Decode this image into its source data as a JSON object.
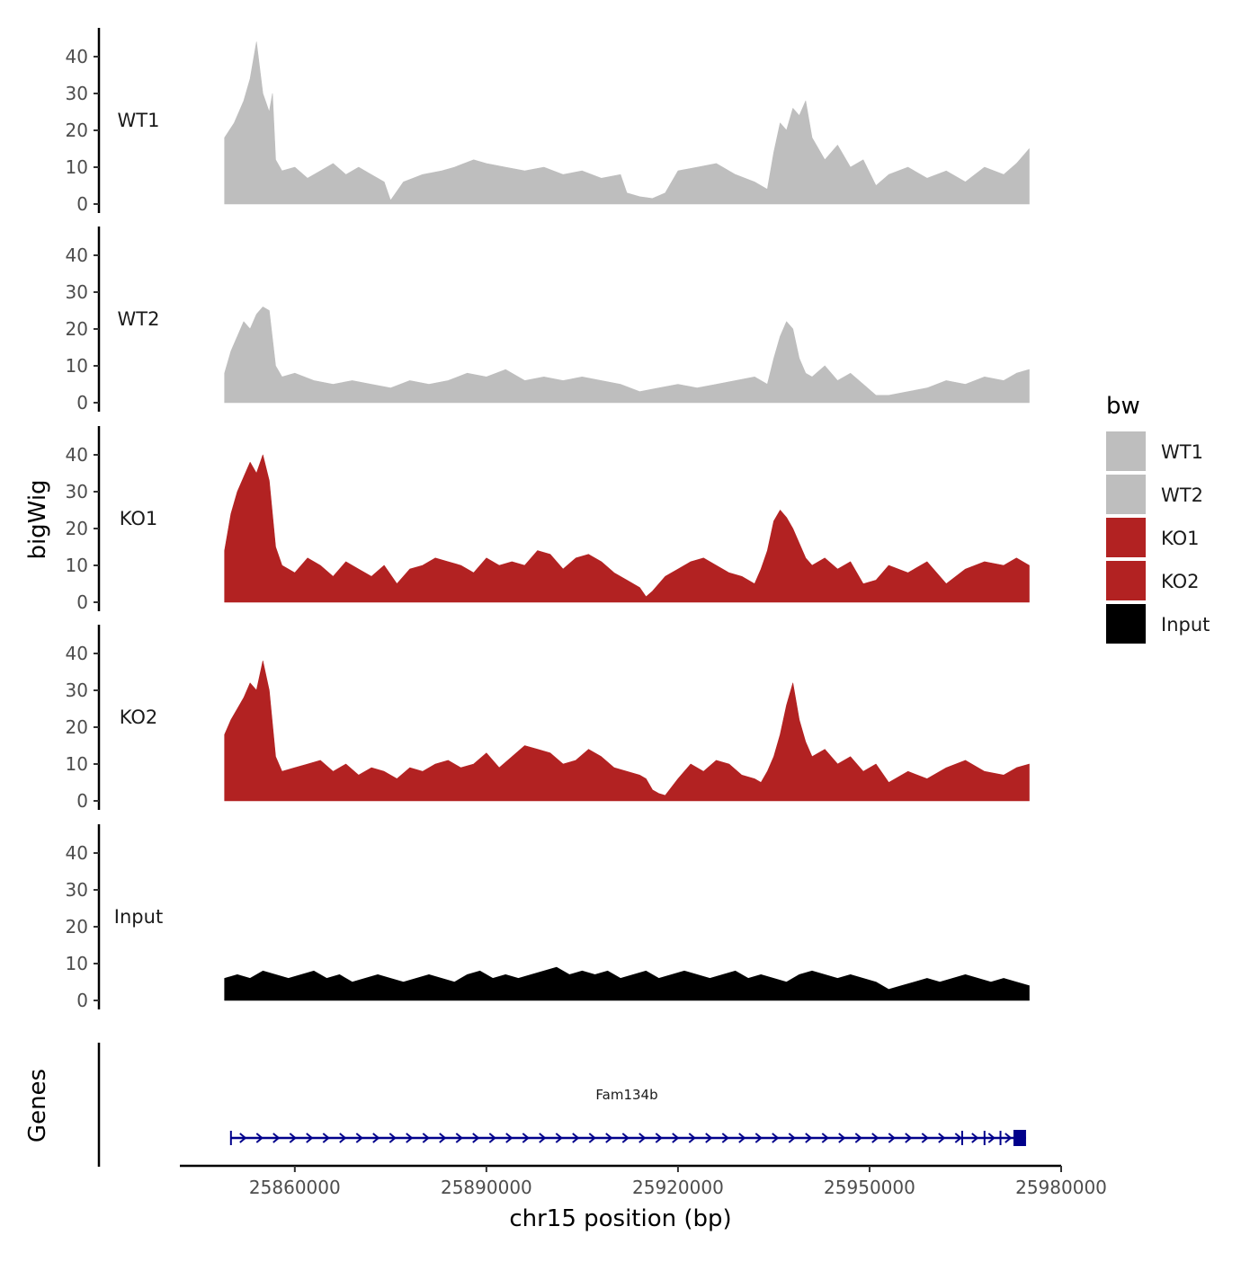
{
  "chart_data": {
    "type": "area",
    "subtype": "genome-browser-tracks",
    "chromosome": "chr15",
    "xlabel": "chr15 position (bp)",
    "ylabel": "bigWig",
    "genes_label": "Genes",
    "xlim": [
      25842000,
      25980000
    ],
    "data_range": [
      25849000,
      25975000
    ],
    "x_ticks": [
      25860000,
      25890000,
      25920000,
      25950000,
      25980000
    ],
    "x_tick_labels": [
      "25860000",
      "25890000",
      "25920000",
      "25950000",
      "25980000"
    ],
    "ylim": [
      0,
      48
    ],
    "y_ticks": [
      0,
      10,
      20,
      30,
      40
    ],
    "y_tick_labels": [
      "0",
      "10",
      "20",
      "30",
      "40"
    ],
    "legend": {
      "title": "bw",
      "position": "right",
      "entries": [
        {
          "label": "WT1",
          "color": "#BEBEBE"
        },
        {
          "label": "WT2",
          "color": "#BEBEBE"
        },
        {
          "label": "KO1",
          "color": "#B22222"
        },
        {
          "label": "KO2",
          "color": "#B22222"
        },
        {
          "label": "Input",
          "color": "#000000"
        }
      ]
    },
    "series": [
      {
        "name": "WT1",
        "label": "WT1",
        "color": "#BEBEBE",
        "x": [
          25849000,
          25850500,
          25852000,
          25853000,
          25854000,
          25855000,
          25856000,
          25856500,
          25857000,
          25858000,
          25860000,
          25862000,
          25864000,
          25866000,
          25868000,
          25870000,
          25872000,
          25874000,
          25875000,
          25877000,
          25880000,
          25883000,
          25885000,
          25888000,
          25890000,
          25893000,
          25896000,
          25899000,
          25902000,
          25905000,
          25908000,
          25911000,
          25912000,
          25914000,
          25916000,
          25918000,
          25920000,
          25923000,
          25926000,
          25929000,
          25932000,
          25933000,
          25934000,
          25935000,
          25936000,
          25937000,
          25938000,
          25939000,
          25940000,
          25941000,
          25943000,
          25945000,
          25947000,
          25949000,
          25951000,
          25953000,
          25956000,
          25959000,
          25962000,
          25965000,
          25968000,
          25971000,
          25973000,
          25975000
        ],
        "values": [
          18,
          22,
          28,
          34,
          44,
          30,
          25,
          30,
          12,
          9,
          10,
          7,
          9,
          11,
          8,
          10,
          8,
          6,
          1,
          6,
          8,
          9,
          10,
          12,
          11,
          10,
          9,
          10,
          8,
          9,
          7,
          8,
          3,
          2,
          1.5,
          3,
          9,
          10,
          11,
          8,
          6,
          5,
          4,
          14,
          22,
          20,
          26,
          24,
          28,
          18,
          12,
          16,
          10,
          12,
          5,
          8,
          10,
          7,
          9,
          6,
          10,
          8,
          11,
          15
        ]
      },
      {
        "name": "WT2",
        "label": "WT2",
        "color": "#BEBEBE",
        "x": [
          25849000,
          25850000,
          25851000,
          25852000,
          25853000,
          25854000,
          25855000,
          25856000,
          25857000,
          25858000,
          25860000,
          25863000,
          25866000,
          25869000,
          25872000,
          25875000,
          25878000,
          25881000,
          25884000,
          25887000,
          25890000,
          25893000,
          25896000,
          25899000,
          25902000,
          25905000,
          25908000,
          25911000,
          25914000,
          25917000,
          25920000,
          25923000,
          25926000,
          25929000,
          25932000,
          25934000,
          25935000,
          25936000,
          25937000,
          25938000,
          25939000,
          25940000,
          25941000,
          25943000,
          25945000,
          25947000,
          25949000,
          25951000,
          25953000,
          25956000,
          25959000,
          25962000,
          25965000,
          25968000,
          25971000,
          25973000,
          25975000
        ],
        "values": [
          8,
          14,
          18,
          22,
          20,
          24,
          26,
          25,
          10,
          7,
          8,
          6,
          5,
          6,
          5,
          4,
          6,
          5,
          6,
          8,
          7,
          9,
          6,
          7,
          6,
          7,
          6,
          5,
          3,
          4,
          5,
          4,
          5,
          6,
          7,
          5,
          12,
          18,
          22,
          20,
          12,
          8,
          7,
          10,
          6,
          8,
          5,
          2,
          2,
          3,
          4,
          6,
          5,
          7,
          6,
          8,
          9
        ]
      },
      {
        "name": "KO1",
        "label": "KO1",
        "color": "#B22222",
        "x": [
          25849000,
          25850000,
          25851000,
          25852000,
          25853000,
          25854000,
          25855000,
          25856000,
          25857000,
          25858000,
          25860000,
          25862000,
          25864000,
          25866000,
          25868000,
          25870000,
          25872000,
          25874000,
          25876000,
          25878000,
          25880000,
          25882000,
          25884000,
          25886000,
          25888000,
          25890000,
          25892000,
          25894000,
          25896000,
          25898000,
          25900000,
          25902000,
          25904000,
          25906000,
          25908000,
          25910000,
          25912000,
          25914000,
          25915000,
          25916000,
          25918000,
          25920000,
          25922000,
          25924000,
          25926000,
          25928000,
          25930000,
          25932000,
          25933000,
          25934000,
          25935000,
          25936000,
          25937000,
          25938000,
          25939000,
          25940000,
          25941000,
          25943000,
          25945000,
          25947000,
          25949000,
          25951000,
          25953000,
          25956000,
          25959000,
          25962000,
          25965000,
          25968000,
          25971000,
          25973000,
          25975000
        ],
        "values": [
          14,
          24,
          30,
          34,
          38,
          35,
          40,
          33,
          15,
          10,
          8,
          12,
          10,
          7,
          11,
          9,
          7,
          10,
          5,
          9,
          10,
          12,
          11,
          10,
          8,
          12,
          10,
          11,
          10,
          14,
          13,
          9,
          12,
          13,
          11,
          8,
          6,
          4,
          1.5,
          3,
          7,
          9,
          11,
          12,
          10,
          8,
          7,
          5,
          9,
          14,
          22,
          25,
          23,
          20,
          16,
          12,
          10,
          12,
          9,
          11,
          5,
          6,
          10,
          8,
          11,
          5,
          9,
          11,
          10,
          12,
          10
        ]
      },
      {
        "name": "KO2",
        "label": "KO2",
        "color": "#B22222",
        "x": [
          25849000,
          25850000,
          25851000,
          25852000,
          25853000,
          25854000,
          25855000,
          25856000,
          25857000,
          25858000,
          25860000,
          25862000,
          25864000,
          25866000,
          25868000,
          25870000,
          25872000,
          25874000,
          25876000,
          25878000,
          25880000,
          25882000,
          25884000,
          25886000,
          25888000,
          25890000,
          25892000,
          25894000,
          25896000,
          25898000,
          25900000,
          25902000,
          25904000,
          25906000,
          25908000,
          25910000,
          25912000,
          25914000,
          25915000,
          25916000,
          25917000,
          25918000,
          25920000,
          25922000,
          25924000,
          25926000,
          25928000,
          25930000,
          25932000,
          25933000,
          25934000,
          25935000,
          25936000,
          25937000,
          25938000,
          25939000,
          25940000,
          25941000,
          25943000,
          25945000,
          25947000,
          25949000,
          25951000,
          25953000,
          25956000,
          25959000,
          25962000,
          25965000,
          25968000,
          25971000,
          25973000,
          25975000
        ],
        "values": [
          18,
          22,
          25,
          28,
          32,
          30,
          38,
          30,
          12,
          8,
          9,
          10,
          11,
          8,
          10,
          7,
          9,
          8,
          6,
          9,
          8,
          10,
          11,
          9,
          10,
          13,
          9,
          12,
          15,
          14,
          13,
          10,
          11,
          14,
          12,
          9,
          8,
          7,
          6,
          3,
          2,
          1.5,
          6,
          10,
          8,
          11,
          10,
          7,
          6,
          5,
          8,
          12,
          18,
          26,
          32,
          22,
          16,
          12,
          14,
          10,
          12,
          8,
          10,
          5,
          8,
          6,
          9,
          11,
          8,
          7,
          9,
          10
        ]
      },
      {
        "name": "Input",
        "label": "Input",
        "color": "#000000",
        "x": [
          25849000,
          25851000,
          25853000,
          25855000,
          25857000,
          25859000,
          25861000,
          25863000,
          25865000,
          25867000,
          25869000,
          25871000,
          25873000,
          25875000,
          25877000,
          25879000,
          25881000,
          25883000,
          25885000,
          25887000,
          25889000,
          25891000,
          25893000,
          25895000,
          25897000,
          25899000,
          25901000,
          25903000,
          25905000,
          25907000,
          25909000,
          25911000,
          25913000,
          25915000,
          25917000,
          25919000,
          25921000,
          25923000,
          25925000,
          25927000,
          25929000,
          25931000,
          25933000,
          25935000,
          25937000,
          25939000,
          25941000,
          25943000,
          25945000,
          25947000,
          25949000,
          25951000,
          25953000,
          25955000,
          25957000,
          25959000,
          25961000,
          25963000,
          25965000,
          25967000,
          25969000,
          25971000,
          25973000,
          25975000
        ],
        "values": [
          6,
          7,
          6,
          8,
          7,
          6,
          7,
          8,
          6,
          7,
          5,
          6,
          7,
          6,
          5,
          6,
          7,
          6,
          5,
          7,
          8,
          6,
          7,
          6,
          7,
          8,
          9,
          7,
          8,
          7,
          8,
          6,
          7,
          8,
          6,
          7,
          8,
          7,
          6,
          7,
          8,
          6,
          7,
          6,
          5,
          7,
          8,
          7,
          6,
          7,
          6,
          5,
          3,
          4,
          5,
          6,
          5,
          6,
          7,
          6,
          5,
          6,
          5,
          4
        ]
      }
    ],
    "genes": {
      "name": "Fam134b",
      "strand": "+",
      "start": 25850000,
      "end": 25974500,
      "color": "#00008B"
    }
  }
}
